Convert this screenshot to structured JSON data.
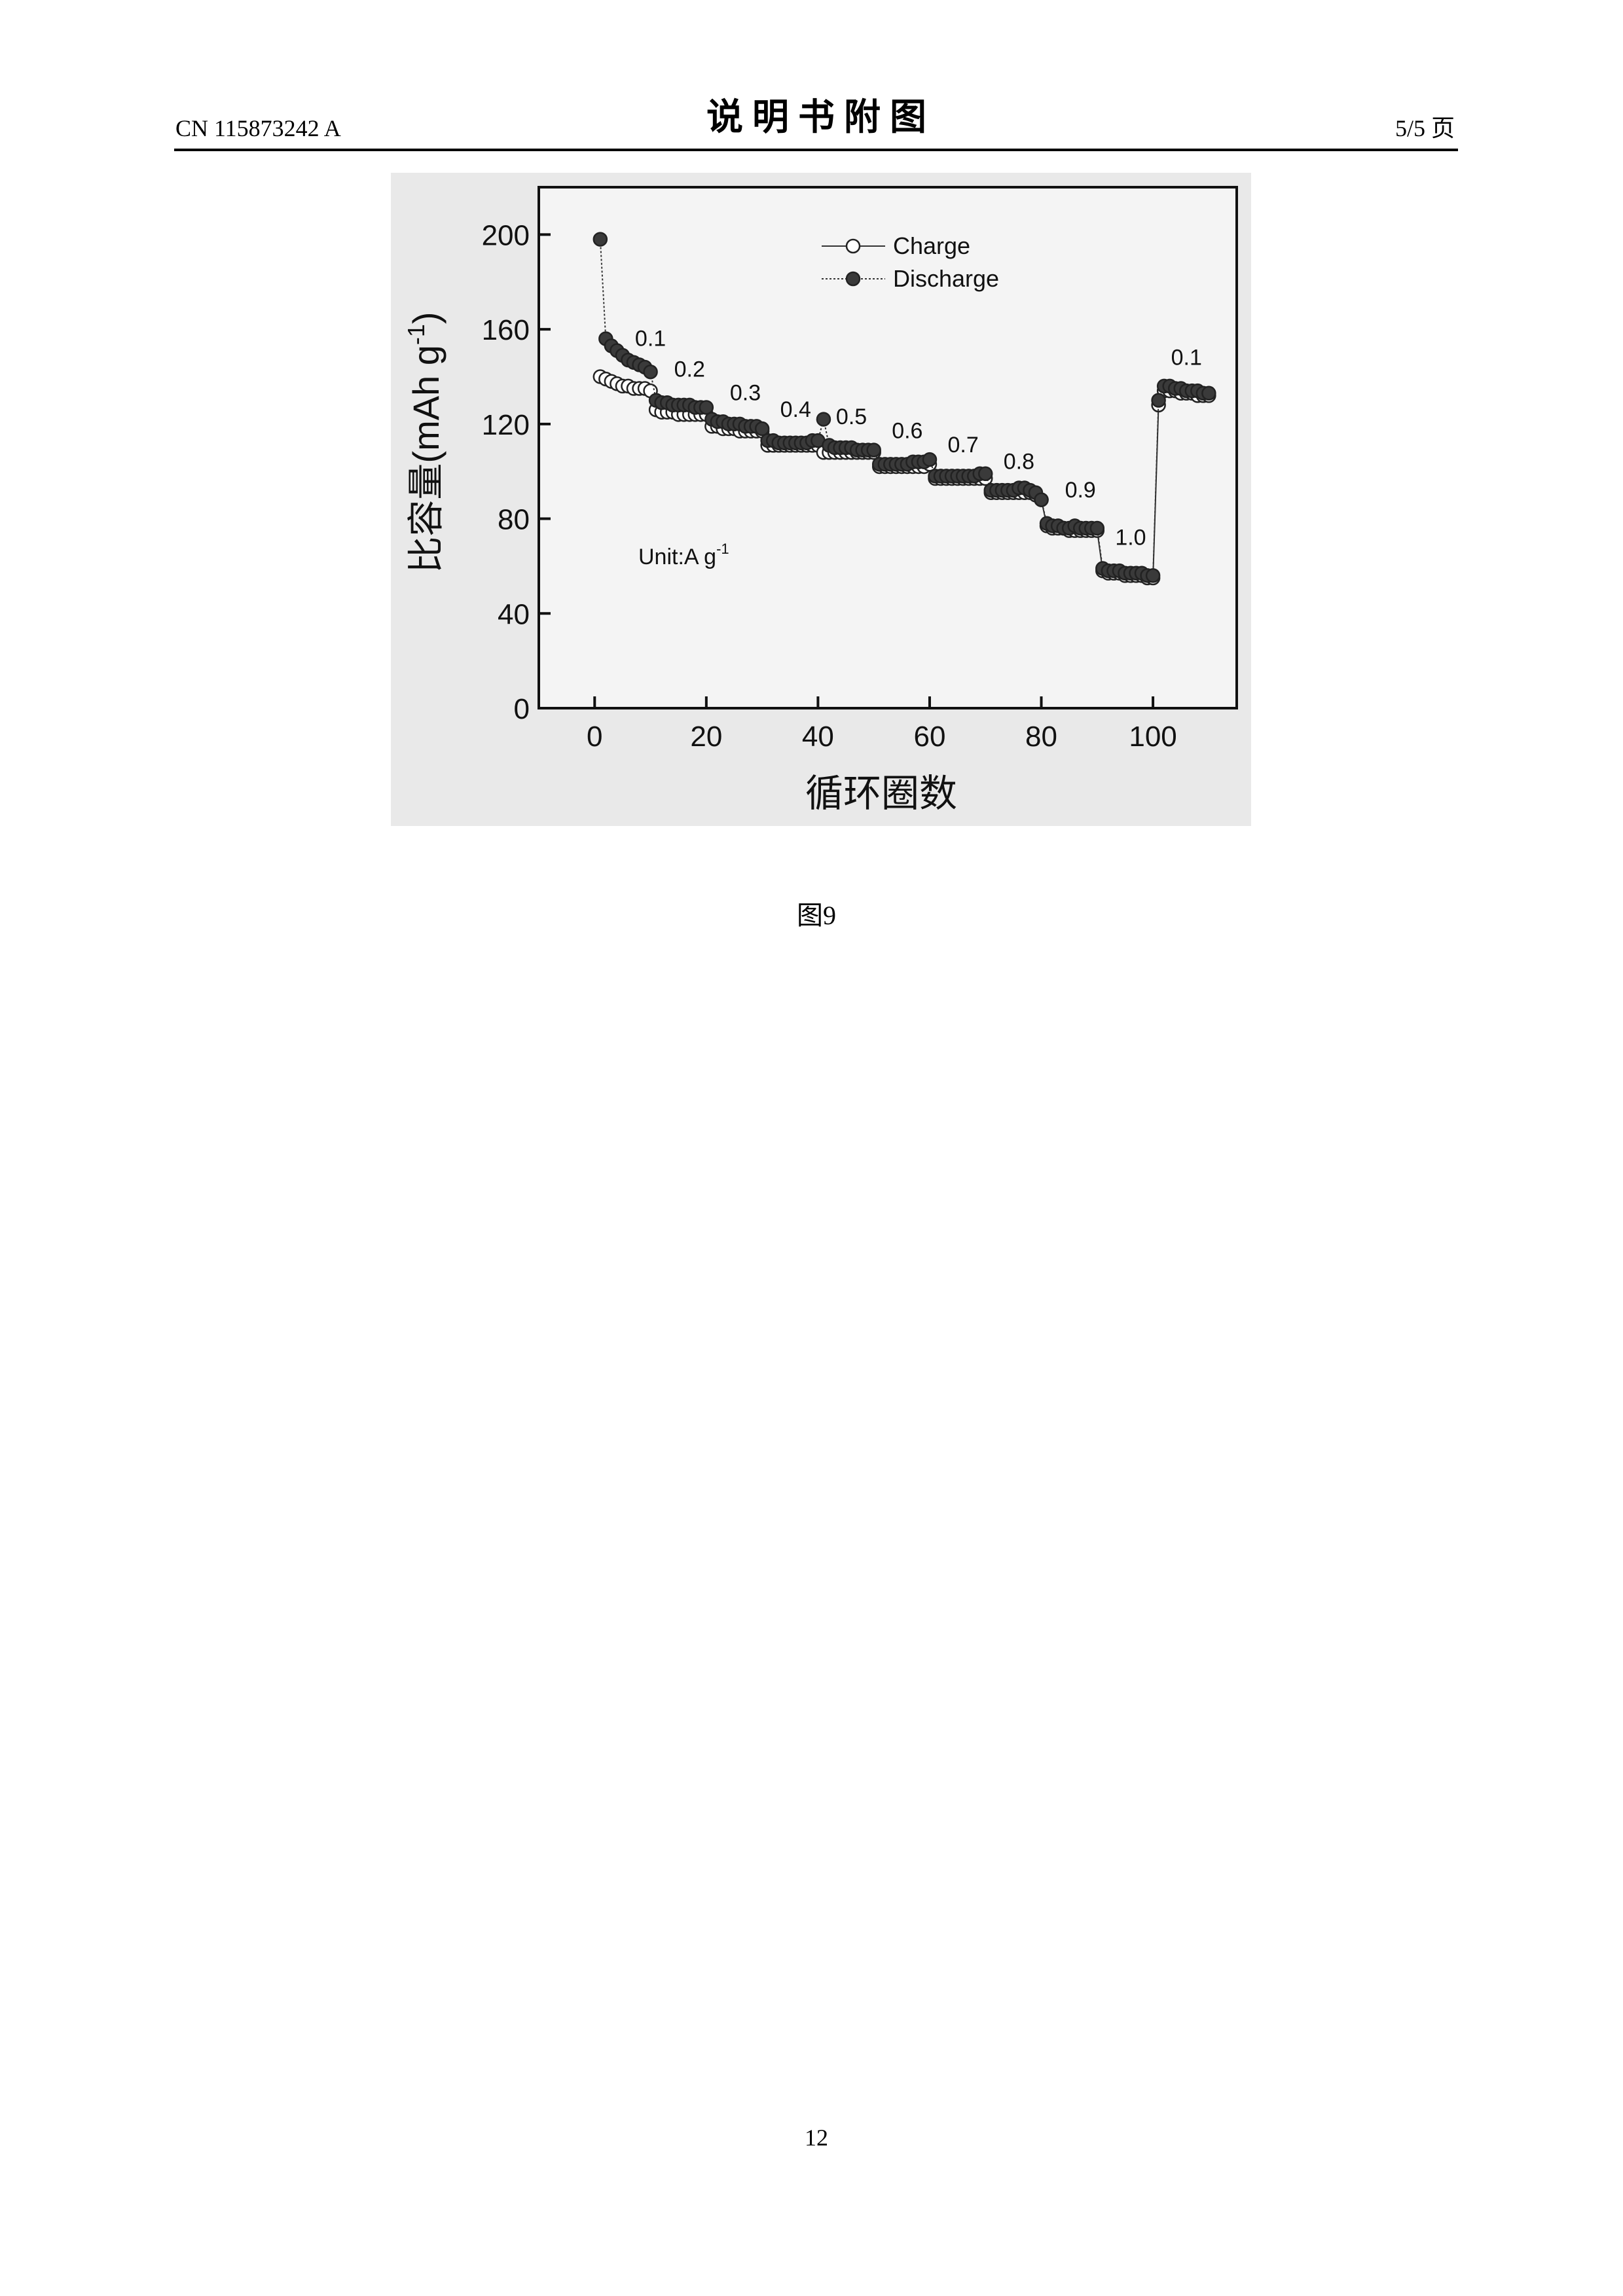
{
  "header": {
    "left": "CN 115873242 A",
    "title": "说 明 书 附 图",
    "right": "5/5 页"
  },
  "chart_data": {
    "type": "scatter",
    "y_label": {
      "text": "比容量(mAh g",
      "sup": "-1",
      "end": ")"
    },
    "x_label": "循环圈数",
    "xlim": [
      -10,
      115
    ],
    "ylim": [
      0,
      220
    ],
    "xticks": [
      0,
      20,
      40,
      60,
      80,
      100
    ],
    "yticks": [
      0,
      40,
      80,
      120,
      160,
      200
    ],
    "legend": "top",
    "annotations": [
      "0.1",
      "0.2",
      "0.3",
      "0.4",
      "0.5",
      "0.6",
      "0.7",
      "0.8",
      "0.9",
      "1.0",
      "0.1"
    ],
    "unit_label": {
      "text": "Unit:A g",
      "sup": "-1"
    },
    "x": [
      1,
      2,
      3,
      4,
      5,
      6,
      7,
      8,
      9,
      10,
      11,
      12,
      13,
      14,
      15,
      16,
      17,
      18,
      19,
      20,
      21,
      22,
      23,
      24,
      25,
      26,
      27,
      28,
      29,
      30,
      31,
      32,
      33,
      34,
      35,
      36,
      37,
      38,
      39,
      40,
      41,
      42,
      43,
      44,
      45,
      46,
      47,
      48,
      49,
      50,
      51,
      52,
      53,
      54,
      55,
      56,
      57,
      58,
      59,
      60,
      61,
      62,
      63,
      64,
      65,
      66,
      67,
      68,
      69,
      70,
      71,
      72,
      73,
      74,
      75,
      76,
      77,
      78,
      79,
      80,
      81,
      82,
      83,
      84,
      85,
      86,
      87,
      88,
      89,
      90,
      91,
      92,
      93,
      94,
      95,
      96,
      97,
      98,
      99,
      100,
      101,
      102,
      103,
      104,
      105,
      106,
      107,
      108,
      109,
      110
    ],
    "series": [
      {
        "name": "Charge",
        "color": "#ffffff",
        "values": [
          140,
          139,
          138,
          137,
          136,
          136,
          135,
          135,
          135,
          134,
          126,
          125,
          125,
          125,
          124,
          124,
          124,
          124,
          124,
          124,
          119,
          119,
          118,
          118,
          118,
          117,
          117,
          117,
          117,
          117,
          111,
          111,
          111,
          111,
          111,
          111,
          111,
          111,
          111,
          111,
          108,
          108,
          108,
          108,
          108,
          108,
          108,
          108,
          108,
          108,
          102,
          102,
          102,
          102,
          102,
          102,
          102,
          102,
          102,
          103,
          97,
          97,
          97,
          97,
          97,
          97,
          97,
          97,
          97,
          97,
          91,
          91,
          91,
          91,
          91,
          91,
          91,
          91,
          90,
          88,
          77,
          76,
          76,
          76,
          75,
          75,
          75,
          75,
          75,
          75,
          58,
          57,
          57,
          57,
          56,
          56,
          56,
          56,
          55,
          55,
          128,
          134,
          134,
          134,
          133,
          133,
          133,
          132,
          132,
          132
        ]
      },
      {
        "name": "Discharge",
        "color": "#3a3a3a",
        "values": [
          198,
          156,
          153,
          151,
          149,
          147,
          146,
          145,
          144,
          142,
          130,
          129,
          129,
          128,
          128,
          128,
          128,
          127,
          127,
          127,
          122,
          121,
          121,
          120,
          120,
          120,
          119,
          119,
          119,
          118,
          113,
          113,
          112,
          112,
          112,
          112,
          112,
          112,
          113,
          113,
          122,
          111,
          110,
          110,
          110,
          110,
          109,
          109,
          109,
          109,
          103,
          103,
          103,
          103,
          103,
          103,
          104,
          104,
          104,
          105,
          98,
          98,
          98,
          98,
          98,
          98,
          98,
          98,
          99,
          99,
          92,
          92,
          92,
          92,
          92,
          93,
          93,
          92,
          91,
          88,
          78,
          77,
          77,
          76,
          76,
          77,
          76,
          76,
          76,
          76,
          59,
          58,
          58,
          58,
          57,
          57,
          57,
          57,
          56,
          56,
          130,
          136,
          136,
          135,
          135,
          134,
          134,
          134,
          133,
          133
        ]
      }
    ]
  },
  "caption": "图9",
  "page_number": "12"
}
